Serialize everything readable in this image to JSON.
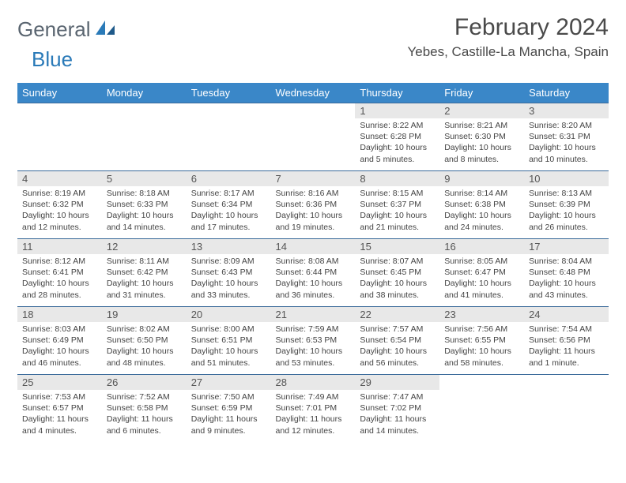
{
  "brand": {
    "word1": "General",
    "word2": "Blue"
  },
  "title": "February 2024",
  "location": "Yebes, Castille-La Mancha, Spain",
  "colors": {
    "header_bg": "#3a87c8",
    "header_text": "#ffffff",
    "row_border": "#3a6a9a",
    "daynum_bg": "#e8e8e8",
    "logo_gray": "#5a6570",
    "logo_blue": "#2a7ab8"
  },
  "weekdays": [
    "Sunday",
    "Monday",
    "Tuesday",
    "Wednesday",
    "Thursday",
    "Friday",
    "Saturday"
  ],
  "weeks": [
    [
      null,
      null,
      null,
      null,
      {
        "n": "1",
        "sunrise": "Sunrise: 8:22 AM",
        "sunset": "Sunset: 6:28 PM",
        "daylight": "Daylight: 10 hours and 5 minutes."
      },
      {
        "n": "2",
        "sunrise": "Sunrise: 8:21 AM",
        "sunset": "Sunset: 6:30 PM",
        "daylight": "Daylight: 10 hours and 8 minutes."
      },
      {
        "n": "3",
        "sunrise": "Sunrise: 8:20 AM",
        "sunset": "Sunset: 6:31 PM",
        "daylight": "Daylight: 10 hours and 10 minutes."
      }
    ],
    [
      {
        "n": "4",
        "sunrise": "Sunrise: 8:19 AM",
        "sunset": "Sunset: 6:32 PM",
        "daylight": "Daylight: 10 hours and 12 minutes."
      },
      {
        "n": "5",
        "sunrise": "Sunrise: 8:18 AM",
        "sunset": "Sunset: 6:33 PM",
        "daylight": "Daylight: 10 hours and 14 minutes."
      },
      {
        "n": "6",
        "sunrise": "Sunrise: 8:17 AM",
        "sunset": "Sunset: 6:34 PM",
        "daylight": "Daylight: 10 hours and 17 minutes."
      },
      {
        "n": "7",
        "sunrise": "Sunrise: 8:16 AM",
        "sunset": "Sunset: 6:36 PM",
        "daylight": "Daylight: 10 hours and 19 minutes."
      },
      {
        "n": "8",
        "sunrise": "Sunrise: 8:15 AM",
        "sunset": "Sunset: 6:37 PM",
        "daylight": "Daylight: 10 hours and 21 minutes."
      },
      {
        "n": "9",
        "sunrise": "Sunrise: 8:14 AM",
        "sunset": "Sunset: 6:38 PM",
        "daylight": "Daylight: 10 hours and 24 minutes."
      },
      {
        "n": "10",
        "sunrise": "Sunrise: 8:13 AM",
        "sunset": "Sunset: 6:39 PM",
        "daylight": "Daylight: 10 hours and 26 minutes."
      }
    ],
    [
      {
        "n": "11",
        "sunrise": "Sunrise: 8:12 AM",
        "sunset": "Sunset: 6:41 PM",
        "daylight": "Daylight: 10 hours and 28 minutes."
      },
      {
        "n": "12",
        "sunrise": "Sunrise: 8:11 AM",
        "sunset": "Sunset: 6:42 PM",
        "daylight": "Daylight: 10 hours and 31 minutes."
      },
      {
        "n": "13",
        "sunrise": "Sunrise: 8:09 AM",
        "sunset": "Sunset: 6:43 PM",
        "daylight": "Daylight: 10 hours and 33 minutes."
      },
      {
        "n": "14",
        "sunrise": "Sunrise: 8:08 AM",
        "sunset": "Sunset: 6:44 PM",
        "daylight": "Daylight: 10 hours and 36 minutes."
      },
      {
        "n": "15",
        "sunrise": "Sunrise: 8:07 AM",
        "sunset": "Sunset: 6:45 PM",
        "daylight": "Daylight: 10 hours and 38 minutes."
      },
      {
        "n": "16",
        "sunrise": "Sunrise: 8:05 AM",
        "sunset": "Sunset: 6:47 PM",
        "daylight": "Daylight: 10 hours and 41 minutes."
      },
      {
        "n": "17",
        "sunrise": "Sunrise: 8:04 AM",
        "sunset": "Sunset: 6:48 PM",
        "daylight": "Daylight: 10 hours and 43 minutes."
      }
    ],
    [
      {
        "n": "18",
        "sunrise": "Sunrise: 8:03 AM",
        "sunset": "Sunset: 6:49 PM",
        "daylight": "Daylight: 10 hours and 46 minutes."
      },
      {
        "n": "19",
        "sunrise": "Sunrise: 8:02 AM",
        "sunset": "Sunset: 6:50 PM",
        "daylight": "Daylight: 10 hours and 48 minutes."
      },
      {
        "n": "20",
        "sunrise": "Sunrise: 8:00 AM",
        "sunset": "Sunset: 6:51 PM",
        "daylight": "Daylight: 10 hours and 51 minutes."
      },
      {
        "n": "21",
        "sunrise": "Sunrise: 7:59 AM",
        "sunset": "Sunset: 6:53 PM",
        "daylight": "Daylight: 10 hours and 53 minutes."
      },
      {
        "n": "22",
        "sunrise": "Sunrise: 7:57 AM",
        "sunset": "Sunset: 6:54 PM",
        "daylight": "Daylight: 10 hours and 56 minutes."
      },
      {
        "n": "23",
        "sunrise": "Sunrise: 7:56 AM",
        "sunset": "Sunset: 6:55 PM",
        "daylight": "Daylight: 10 hours and 58 minutes."
      },
      {
        "n": "24",
        "sunrise": "Sunrise: 7:54 AM",
        "sunset": "Sunset: 6:56 PM",
        "daylight": "Daylight: 11 hours and 1 minute."
      }
    ],
    [
      {
        "n": "25",
        "sunrise": "Sunrise: 7:53 AM",
        "sunset": "Sunset: 6:57 PM",
        "daylight": "Daylight: 11 hours and 4 minutes."
      },
      {
        "n": "26",
        "sunrise": "Sunrise: 7:52 AM",
        "sunset": "Sunset: 6:58 PM",
        "daylight": "Daylight: 11 hours and 6 minutes."
      },
      {
        "n": "27",
        "sunrise": "Sunrise: 7:50 AM",
        "sunset": "Sunset: 6:59 PM",
        "daylight": "Daylight: 11 hours and 9 minutes."
      },
      {
        "n": "28",
        "sunrise": "Sunrise: 7:49 AM",
        "sunset": "Sunset: 7:01 PM",
        "daylight": "Daylight: 11 hours and 12 minutes."
      },
      {
        "n": "29",
        "sunrise": "Sunrise: 7:47 AM",
        "sunset": "Sunset: 7:02 PM",
        "daylight": "Daylight: 11 hours and 14 minutes."
      },
      null,
      null
    ]
  ]
}
